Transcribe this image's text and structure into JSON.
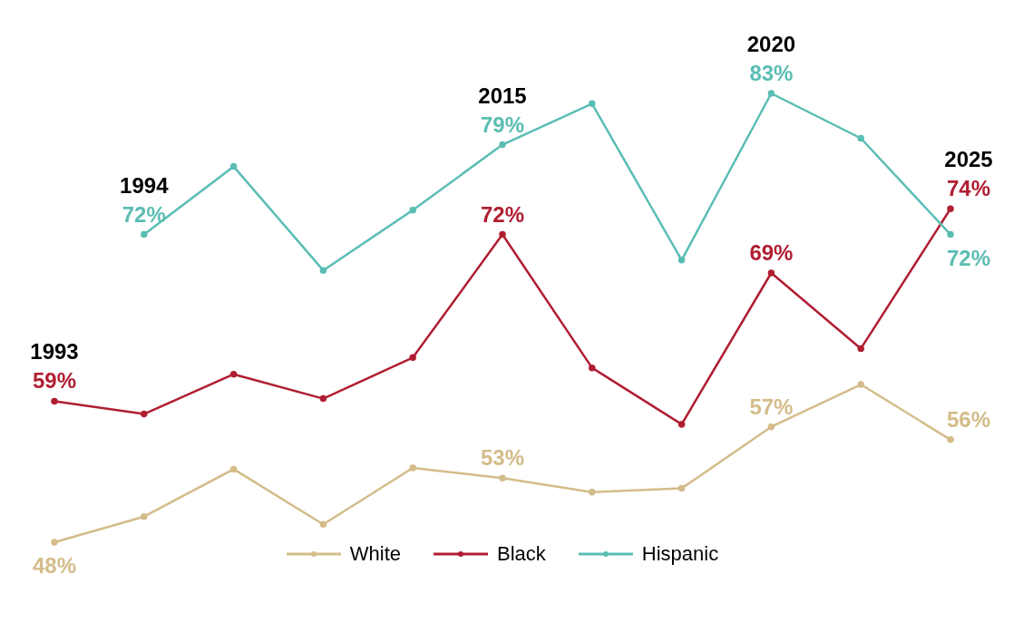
{
  "chart_data": {
    "type": "line",
    "categories": [
      "1993",
      "1994",
      null,
      null,
      null,
      "2015",
      null,
      null,
      "2020",
      null,
      "2025"
    ],
    "series": [
      {
        "name": "White",
        "color": "#d4bc8a",
        "values": [
          48,
          50,
          53.7,
          49.4,
          53.8,
          53,
          51.9,
          52.2,
          57,
          60.3,
          56
        ],
        "value_labels": [
          "48%",
          null,
          null,
          null,
          null,
          "53%",
          null,
          null,
          "57%",
          null,
          "56%"
        ]
      },
      {
        "name": "Black",
        "color": "#b01e32",
        "values": [
          59,
          58,
          61.1,
          59.2,
          62.4,
          72,
          61.6,
          57.2,
          69,
          63.1,
          74
        ],
        "value_labels": [
          "59%",
          null,
          null,
          null,
          null,
          "72%",
          null,
          null,
          "69%",
          null,
          "74%"
        ]
      },
      {
        "name": "Hispanic",
        "color": "#5bbdb3",
        "values": [
          null,
          72,
          77.3,
          69.2,
          73.9,
          79,
          82.2,
          70,
          83,
          79.5,
          72
        ],
        "value_labels": [
          null,
          "72%",
          null,
          null,
          null,
          "79%",
          null,
          null,
          "83%",
          null,
          "72%"
        ]
      }
    ],
    "marker": "circle",
    "legend": "bottom",
    "tick_labels": false
  }
}
